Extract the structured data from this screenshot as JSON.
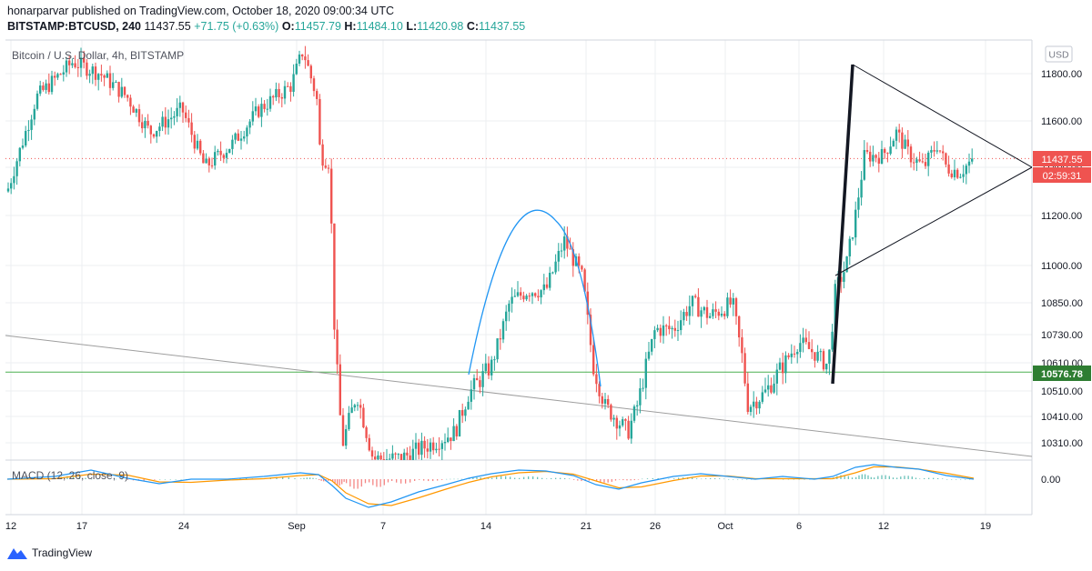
{
  "header": {
    "publisher_line": "honarparvar published on TradingView.com, October 18, 2020 09:00:34 UTC",
    "symbol": "BITSTAMP:BTCUSD, 240",
    "last": "11437.55",
    "change": "+71.75 (+0.63%)",
    "o_label": "O:",
    "o_value": "11457.79",
    "h_label": "H:",
    "h_value": "11484.10",
    "l_label": "L:",
    "l_value": "11420.98",
    "c_label": "C:",
    "c_value": "11437.55"
  },
  "legend": {
    "series_title": "Bitcoin / U.S. Dollar, 4h, BITSTAMP",
    "indicator_title": "MACD (12, 26, close, 9)",
    "currency": "USD"
  },
  "brand": {
    "name": "TradingView"
  },
  "colors": {
    "up": "#26a69a",
    "down": "#ef5350",
    "price_line": "#ef5350",
    "support_line": "#4caf50",
    "arc": "#2196f3",
    "macd": "#2196f3",
    "signal": "#ff9800",
    "grid": "#eceff2"
  },
  "chart_data": [
    {
      "type": "candlestick",
      "title": "Bitcoin / U.S. Dollar, 4h, BITSTAMP",
      "ylabel": "USD",
      "y_ticks": [
        10310,
        10410,
        10510,
        10610,
        10730,
        10850,
        11000,
        11200,
        11400,
        11600,
        11800
      ],
      "y_tick_labels": [
        "10310.00",
        "10410.00",
        "10510.00",
        "10610.00",
        "10730.00",
        "10850.00",
        "11000.00",
        "11200.00",
        "11400.00",
        "11600.00",
        "11800.00"
      ],
      "x_tick_labels": [
        "12",
        "17",
        "24",
        "Sep",
        "7",
        "14",
        "21",
        "26",
        "Oct",
        "6",
        "12",
        "19"
      ],
      "current_price": {
        "label": "11437.55",
        "value": 11437.55,
        "countdown": "02:59:31"
      },
      "support_level": {
        "label": "10576.78",
        "value": 10576.78
      },
      "grid": true,
      "price_path_approx": [
        {
          "x": "Aug 12",
          "close": 11300
        },
        {
          "x": "Aug 17",
          "close": 11800
        },
        {
          "x": "Aug 20",
          "close": 11750
        },
        {
          "x": "Aug 24",
          "close": 11500
        },
        {
          "x": "Aug 28",
          "close": 11500
        },
        {
          "x": "Sep 1",
          "close": 11900
        },
        {
          "x": "Sep 3",
          "close": 11400
        },
        {
          "x": "Sep 5",
          "close": 10300
        },
        {
          "x": "Sep 8",
          "close": 10200
        },
        {
          "x": "Sep 11",
          "close": 10300
        },
        {
          "x": "Sep 13",
          "close": 10450
        },
        {
          "x": "Sep 16",
          "close": 10950
        },
        {
          "x": "Sep 19",
          "close": 11100
        },
        {
          "x": "Sep 21",
          "close": 10900
        },
        {
          "x": "Sep 22",
          "close": 10450
        },
        {
          "x": "Sep 24",
          "close": 10350
        },
        {
          "x": "Sep 26",
          "close": 10700
        },
        {
          "x": "Sep 29",
          "close": 10800
        },
        {
          "x": "Oct 2",
          "close": 10500
        },
        {
          "x": "Oct 5",
          "close": 10650
        },
        {
          "x": "Oct 8",
          "close": 10600
        },
        {
          "x": "Oct 9",
          "close": 11100
        },
        {
          "x": "Oct 10",
          "close": 11400
        },
        {
          "x": "Oct 12",
          "close": 11550
        },
        {
          "x": "Oct 15",
          "close": 11450
        },
        {
          "x": "Oct 18",
          "close": 11437.55
        }
      ]
    },
    {
      "type": "line",
      "title": "MACD (12, 26, close, 9)",
      "y_ticks": [
        0
      ],
      "y_tick_labels": [
        "0.00"
      ],
      "series": [
        {
          "name": "MACD",
          "color": "#2196f3"
        },
        {
          "name": "Signal",
          "color": "#ff9800"
        },
        {
          "name": "Histogram",
          "color": "#26a69a"
        }
      ]
    }
  ]
}
